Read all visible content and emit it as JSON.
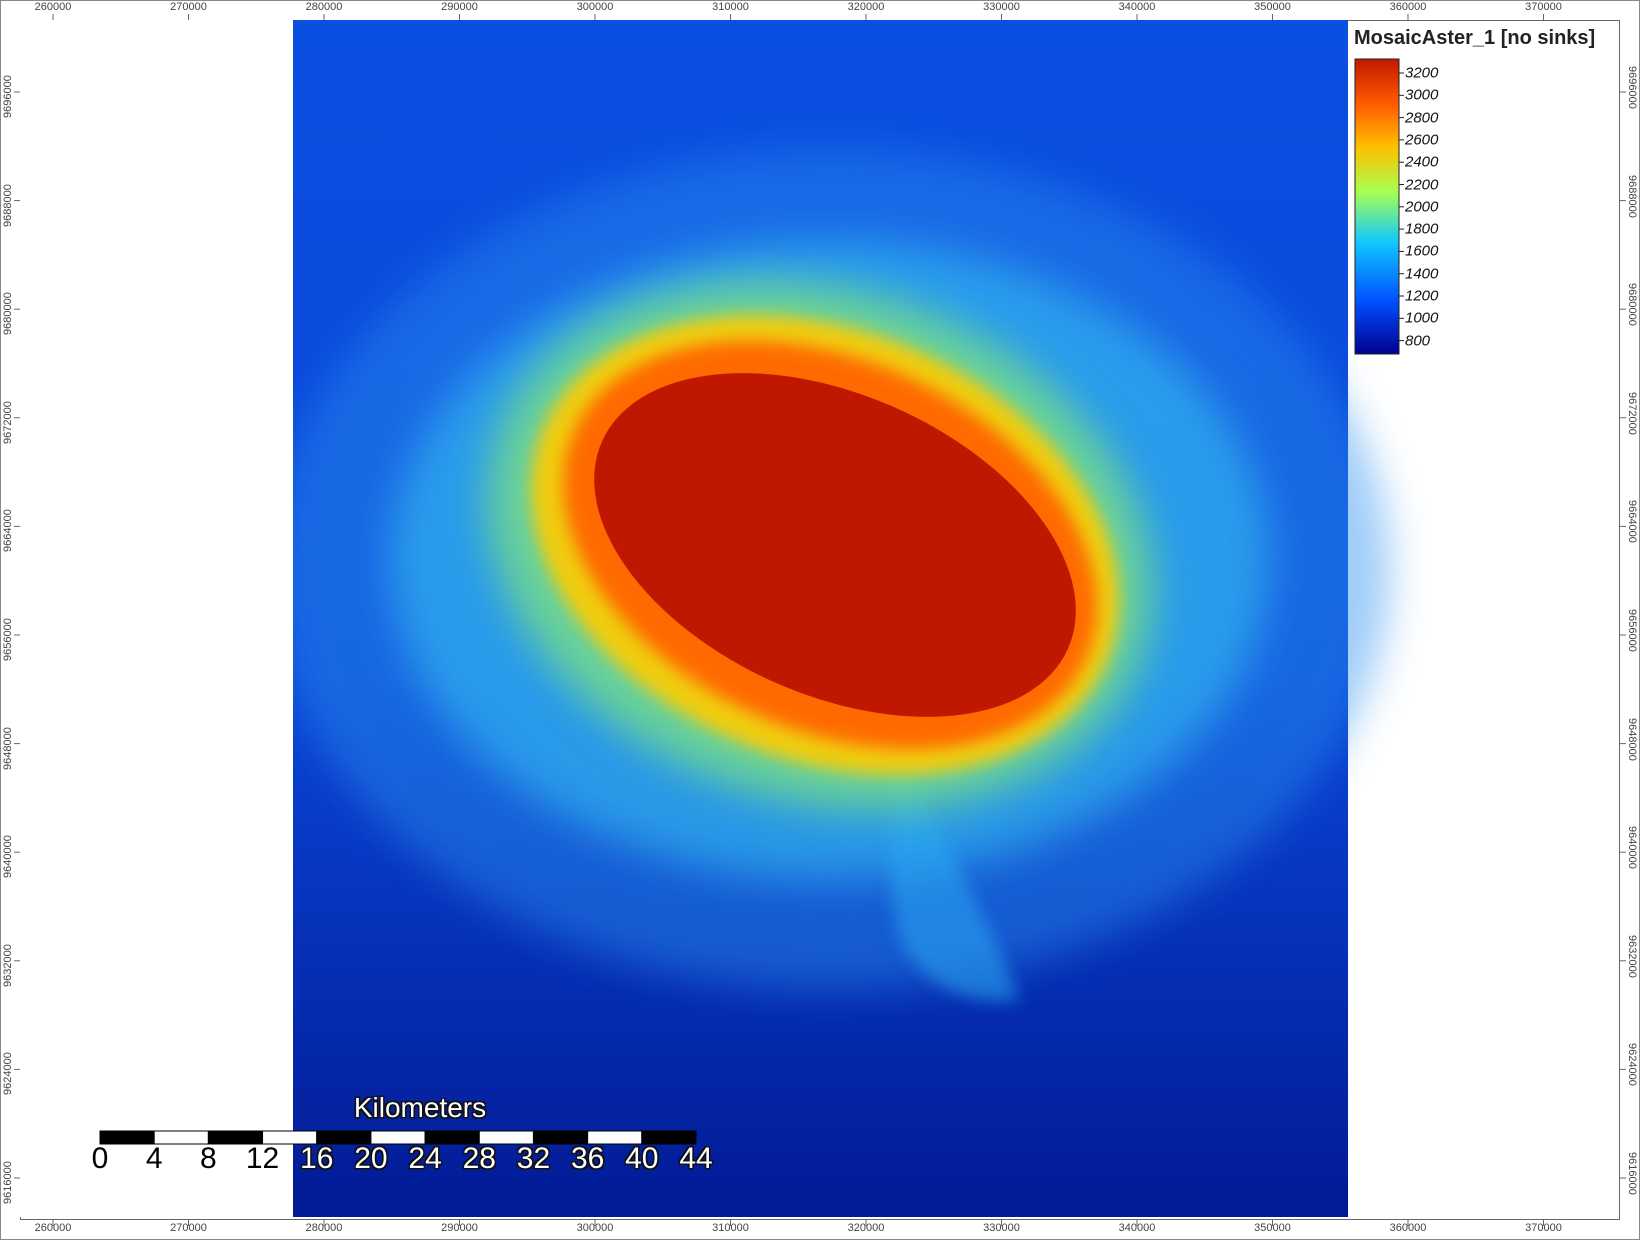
{
  "legend": {
    "title": "MosaicAster_1 [no sinks]",
    "labels": [
      "3200",
      "3000",
      "2800",
      "2600",
      "2400",
      "2200",
      "2000",
      "1800",
      "1600",
      "1400",
      "1200",
      "1000",
      "800"
    ],
    "colors": [
      "#c01800",
      "#ff5a00",
      "#ffc000",
      "#a8ff50",
      "#12c8ff",
      "#0050ff",
      "#000090"
    ]
  },
  "axes": {
    "x_ticks": [
      "260000",
      "270000",
      "280000",
      "290000",
      "300000",
      "310000",
      "320000",
      "330000",
      "340000",
      "350000",
      "360000",
      "370000"
    ],
    "y_ticks": [
      "9696000",
      "9688000",
      "9680000",
      "9672000",
      "9664000",
      "9656000",
      "9648000",
      "9640000",
      "9632000",
      "9624000",
      "9616000"
    ]
  },
  "scale_bar": {
    "title": "Kilometers",
    "labels": [
      "0",
      "4",
      "8",
      "12",
      "16",
      "20",
      "24",
      "28",
      "32",
      "36",
      "40",
      "44"
    ]
  },
  "colors": {
    "low": "#0a1fb5",
    "mid": "#39c6f2",
    "high": "#c01800",
    "frame": "#555555"
  }
}
